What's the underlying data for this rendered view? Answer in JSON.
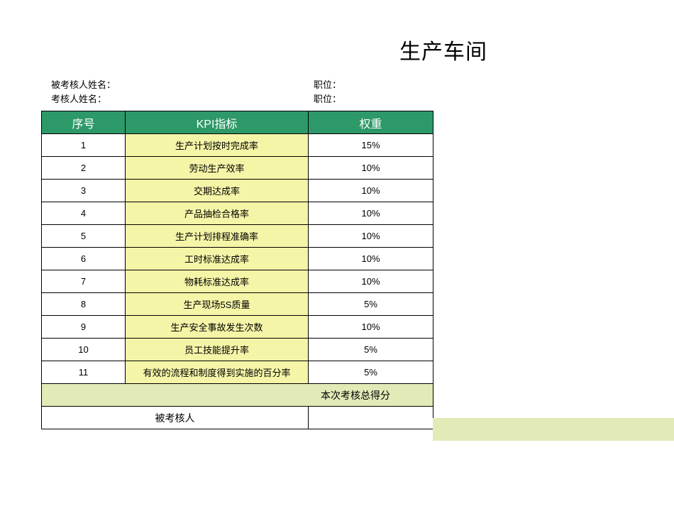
{
  "title": "生产车间",
  "meta": {
    "evaluated_name_label": "被考核人姓名：",
    "evaluator_name_label": "考核人姓名：",
    "position_label": "职位："
  },
  "table": {
    "headers": {
      "seq": "序号",
      "kpi": "KPI指标",
      "weight": "权重"
    },
    "header_bg": "#2e9968",
    "header_fg": "#ffffff",
    "kpi_bg": "#f5f5a8",
    "total_bg": "#e2eab8",
    "border_color": "#000000",
    "rows": [
      {
        "seq": "1",
        "kpi": "生产计划按时完成率",
        "weight": "15%"
      },
      {
        "seq": "2",
        "kpi": "劳动生产效率",
        "weight": "10%"
      },
      {
        "seq": "3",
        "kpi": "交期达成率",
        "weight": "10%"
      },
      {
        "seq": "4",
        "kpi": "产品抽检合格率",
        "weight": "10%"
      },
      {
        "seq": "5",
        "kpi": "生产计划排程准确率",
        "weight": "10%"
      },
      {
        "seq": "6",
        "kpi": "工时标准达成率",
        "weight": "10%"
      },
      {
        "seq": "7",
        "kpi": "物耗标准达成率",
        "weight": "10%"
      },
      {
        "seq": "8",
        "kpi": "生产现场5S质量",
        "weight": "5%"
      },
      {
        "seq": "9",
        "kpi": "生产安全事故发生次数",
        "weight": "10%"
      },
      {
        "seq": "10",
        "kpi": "员工技能提升率",
        "weight": "5%"
      },
      {
        "seq": "11",
        "kpi": "有效的流程和制度得到实施的百分率",
        "weight": "5%"
      }
    ],
    "total_label": "本次考核总得分",
    "signer_label": "被考核人"
  }
}
